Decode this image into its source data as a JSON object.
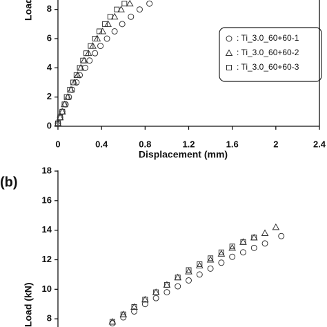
{
  "chart_data": [
    {
      "type": "scatter",
      "x_label": "Displacement (mm)",
      "y_label": "Load (kN)",
      "xlim": [
        0,
        2.4
      ],
      "xticks": [
        0,
        0.4,
        0.8,
        1.2,
        1.6,
        2,
        2.4
      ],
      "ylim": [
        0,
        8.6
      ],
      "yticks": [
        0,
        2,
        4,
        6,
        8
      ],
      "legend": "upper right",
      "color": "#333333",
      "series": [
        {
          "name": ": Ti_3.0_60+60-1",
          "marker": "circle",
          "x": [
            0,
            0.02,
            0.04,
            0.07,
            0.1,
            0.13,
            0.17,
            0.2,
            0.25,
            0.29,
            0.34,
            0.39,
            0.45,
            0.52,
            0.59,
            0.67,
            0.75,
            0.84
          ],
          "values": [
            0.2,
            0.6,
            1.0,
            1.5,
            2.0,
            2.5,
            3.0,
            3.5,
            4.0,
            4.5,
            5.0,
            5.5,
            6.0,
            6.5,
            7.0,
            7.5,
            8.0,
            8.4
          ]
        },
        {
          "name": ": Ti_3.0_60+60-2",
          "marker": "triangle",
          "x": [
            0,
            0.02,
            0.04,
            0.06,
            0.09,
            0.12,
            0.15,
            0.18,
            0.21,
            0.24,
            0.28,
            0.32,
            0.36,
            0.41,
            0.46,
            0.52,
            0.58,
            0.66
          ],
          "values": [
            0.2,
            0.6,
            1.0,
            1.5,
            2.0,
            2.5,
            3.0,
            3.5,
            4.0,
            4.5,
            5.0,
            5.5,
            6.0,
            6.5,
            7.0,
            7.5,
            8.0,
            8.4
          ]
        },
        {
          "name": ": Ti_3.0_60+60-3",
          "marker": "square",
          "x": [
            0,
            0.02,
            0.04,
            0.06,
            0.08,
            0.11,
            0.14,
            0.17,
            0.2,
            0.23,
            0.26,
            0.3,
            0.34,
            0.38,
            0.43,
            0.48,
            0.54,
            0.61
          ],
          "values": [
            0.2,
            0.6,
            1.0,
            1.5,
            2.0,
            2.5,
            3.0,
            3.5,
            4.0,
            4.5,
            5.0,
            5.5,
            6.0,
            6.5,
            7.0,
            7.5,
            8.0,
            8.4
          ]
        }
      ]
    },
    {
      "type": "scatter",
      "panel_label": "(b)",
      "y_label": "Load (kN)",
      "xlim": [
        0,
        2.4
      ],
      "ylim": [
        7.4,
        18
      ],
      "yticks": [
        8,
        10,
        12,
        14,
        16,
        18
      ],
      "color": "#333333",
      "series": [
        {
          "marker": "circle",
          "x": [
            0.5,
            0.6,
            0.7,
            0.8,
            0.9,
            1.0,
            1.1,
            1.2,
            1.3,
            1.4,
            1.5,
            1.6,
            1.7,
            1.8,
            1.9,
            2.05
          ],
          "values": [
            7.7,
            8.1,
            8.5,
            9.0,
            9.4,
            9.8,
            10.2,
            10.6,
            11.0,
            11.4,
            11.8,
            12.2,
            12.5,
            12.8,
            13.1,
            13.6
          ]
        },
        {
          "marker": "triangle",
          "x": [
            0.5,
            0.6,
            0.7,
            0.8,
            0.9,
            1.0,
            1.1,
            1.2,
            1.3,
            1.4,
            1.5,
            1.6,
            1.7,
            1.8,
            1.9,
            2.0
          ],
          "values": [
            7.8,
            8.3,
            8.8,
            9.3,
            9.8,
            10.3,
            10.8,
            11.2,
            11.6,
            12.0,
            12.4,
            12.8,
            13.2,
            13.5,
            13.8,
            14.2
          ]
        },
        {
          "marker": "square",
          "x": [
            0.5,
            0.6,
            0.7,
            0.8,
            0.9,
            1.0,
            1.1,
            1.2,
            1.3,
            1.4,
            1.5,
            1.6,
            1.7,
            1.8
          ],
          "values": [
            7.8,
            8.3,
            8.8,
            9.3,
            9.8,
            10.3,
            10.8,
            11.3,
            11.7,
            12.1,
            12.5,
            12.9,
            13.2,
            13.5
          ]
        }
      ]
    }
  ]
}
